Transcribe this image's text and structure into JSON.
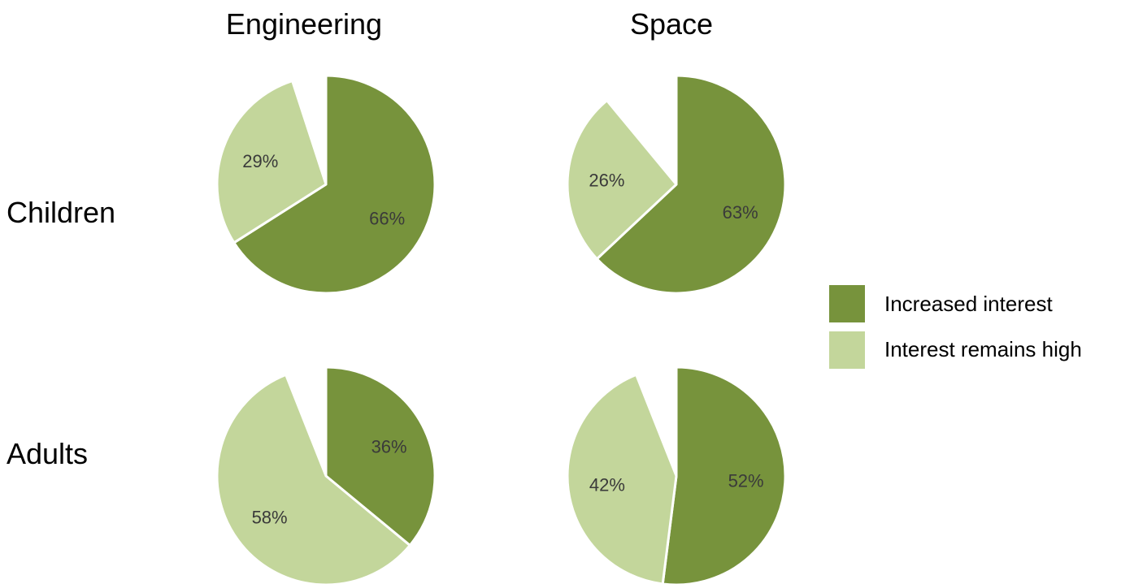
{
  "chart_data": {
    "type": "pie",
    "columns": [
      "Engineering",
      "Space"
    ],
    "rows": [
      "Children",
      "Adults"
    ],
    "legend": {
      "placement": "right",
      "entries": [
        "Increased interest",
        "Interest remains high"
      ]
    },
    "colors": {
      "Increased interest": "#77933c",
      "Interest remains high": "#c3d69b",
      "background": "#ffffff",
      "separator": "#ffffff"
    },
    "pies": [
      {
        "row": "Children",
        "column": "Engineering",
        "slices": [
          {
            "series": "Increased interest",
            "value": 66,
            "label": "66%"
          },
          {
            "series": "Interest remains high",
            "value": 29,
            "label": "29%"
          }
        ]
      },
      {
        "row": "Children",
        "column": "Space",
        "slices": [
          {
            "series": "Increased interest",
            "value": 63,
            "label": "63%"
          },
          {
            "series": "Interest remains high",
            "value": 26,
            "label": "26%"
          }
        ]
      },
      {
        "row": "Adults",
        "column": "Engineering",
        "slices": [
          {
            "series": "Increased interest",
            "value": 36,
            "label": "36%"
          },
          {
            "series": "Interest remains high",
            "value": 58,
            "label": "58%"
          }
        ]
      },
      {
        "row": "Adults",
        "column": "Space",
        "slices": [
          {
            "series": "Increased interest",
            "value": 52,
            "label": "52%"
          },
          {
            "series": "Interest remains high",
            "value": 42,
            "label": "42%"
          }
        ]
      }
    ]
  }
}
